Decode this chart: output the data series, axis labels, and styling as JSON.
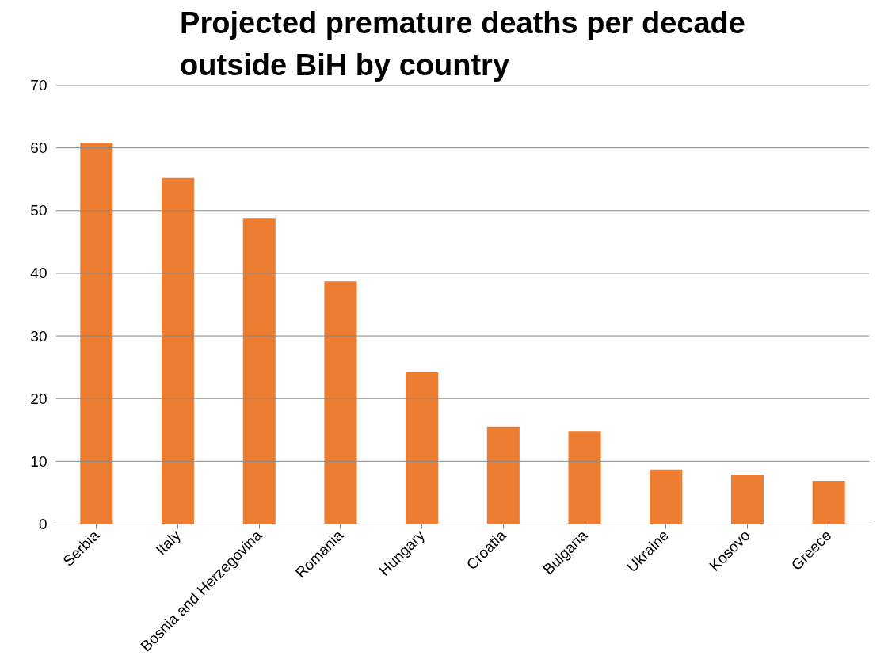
{
  "chart_data": {
    "type": "bar",
    "title": "Projected premature deaths per decade outside BiH by country",
    "categories": [
      "Serbia",
      "Italy",
      "Bosnia and Herzegovina",
      "Romania",
      "Hungary",
      "Croatia",
      "Bulgaria",
      "Ukraine",
      "Kosovo",
      "Greece"
    ],
    "values": [
      60.8,
      55.2,
      48.8,
      38.7,
      24.2,
      15.5,
      14.8,
      8.7,
      7.9,
      6.9
    ],
    "color": "#ed7d31",
    "ylim": [
      0,
      70
    ],
    "yticks": [
      0,
      10,
      20,
      30,
      40,
      50,
      60,
      70
    ],
    "grid": "y"
  }
}
